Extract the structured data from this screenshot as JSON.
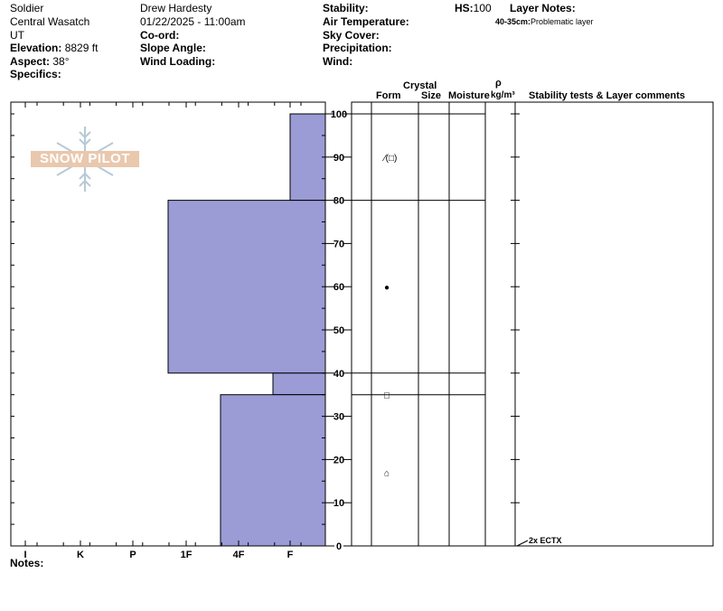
{
  "header": {
    "location": "Soldier",
    "range": "Central Wasatch",
    "state": "UT",
    "elevation_label": "Elevation:",
    "elevation_value": "8829 ft",
    "aspect_label": "Aspect:",
    "aspect_value": "38°",
    "specifics_label": "Specifics:",
    "observer": "Drew Hardesty",
    "datetime": "01/22/2025 - 11:00am",
    "coord_label": "Co-ord:",
    "slope_label": "Slope Angle:",
    "wind_loading_label": "Wind Loading:",
    "stability_label": "Stability:",
    "air_temp_label": "Air Temperature:",
    "sky_cover_label": "Sky Cover:",
    "precip_label": "Precipitation:",
    "wind_label": "Wind:",
    "hs_label": "HS:",
    "hs_value": "100",
    "layer_notes_label": "Layer Notes:",
    "layer_note_depth": "40-35cm:",
    "layer_note_text": "Problematic layer"
  },
  "logo": {
    "text": "SNOW PILOT"
  },
  "columns": {
    "crystal": "Crystal",
    "form": "Form",
    "size": "Size",
    "moisture": "Moisture",
    "rho": "ρ",
    "density_unit": "kg/m³",
    "comments": "Stability tests & Layer comments"
  },
  "notes_label": "Notes:",
  "stability_test": "2x ECTX",
  "chart_data": {
    "type": "bar",
    "hardness_labels": [
      "I",
      "K",
      "P",
      "1F",
      "4F",
      "F"
    ],
    "ylim": [
      0,
      100
    ],
    "yticks": [
      0,
      10,
      20,
      30,
      40,
      50,
      60,
      70,
      80,
      90,
      100
    ],
    "layers": [
      {
        "top": 100,
        "bottom": 80,
        "hardness": "F"
      },
      {
        "top": 80,
        "bottom": 40,
        "hardness": "1F-"
      },
      {
        "top": 40,
        "bottom": 35,
        "hardness": "4F+"
      },
      {
        "top": 35,
        "bottom": 0,
        "hardness": "4F-"
      }
    ],
    "boundaries": [
      100,
      80,
      40,
      35
    ],
    "grain_forms": [
      {
        "height": 90,
        "symbol": "⁄(□)"
      },
      {
        "height": 60,
        "symbol": "●"
      },
      {
        "height": 35,
        "symbol": "□"
      },
      {
        "height": 17,
        "symbol": "⌂"
      }
    ],
    "stability_tests": [
      {
        "height": 0,
        "label": "2x ECTX"
      }
    ],
    "colors": {
      "fill": "#9b9bd6",
      "stroke": "#000000"
    }
  }
}
